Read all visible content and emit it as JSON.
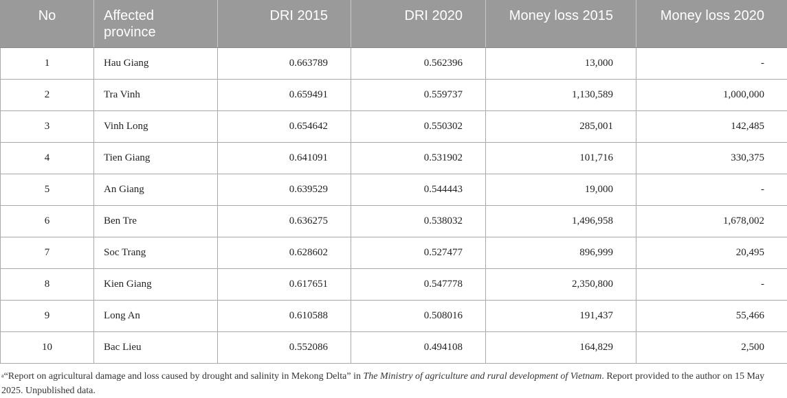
{
  "table": {
    "headers": {
      "no": "No",
      "province": "Affected province",
      "dri_2015": "DRI 2015",
      "dri_2020": "DRI 2020",
      "money_2015": "Money loss 2015",
      "money_2020": "Money loss 2020"
    },
    "rows": [
      {
        "no": "1",
        "province": "Hau Giang",
        "dri_2015": "0.663789",
        "dri_2020": "0.562396",
        "money_2015": "13,000",
        "money_2020": "-"
      },
      {
        "no": "2",
        "province": "Tra Vinh",
        "dri_2015": "0.659491",
        "dri_2020": "0.559737",
        "money_2015": "1,130,589",
        "money_2020": "1,000,000"
      },
      {
        "no": "3",
        "province": "Vinh Long",
        "dri_2015": "0.654642",
        "dri_2020": "0.550302",
        "money_2015": "285,001",
        "money_2020": "142,485"
      },
      {
        "no": "4",
        "province": "Tien Giang",
        "dri_2015": "0.641091",
        "dri_2020": "0.531902",
        "money_2015": "101,716",
        "money_2020": "330,375"
      },
      {
        "no": "5",
        "province": "An Giang",
        "dri_2015": "0.639529",
        "dri_2020": "0.544443",
        "money_2015": "19,000",
        "money_2020": "-"
      },
      {
        "no": "6",
        "province": "Ben Tre",
        "dri_2015": "0.636275",
        "dri_2020": "0.538032",
        "money_2015": "1,496,958",
        "money_2020": "1,678,002"
      },
      {
        "no": "7",
        "province": "Soc Trang",
        "dri_2015": "0.628602",
        "dri_2020": "0.527477",
        "money_2015": "896,999",
        "money_2020": "20,495"
      },
      {
        "no": "8",
        "province": "Kien Giang",
        "dri_2015": "0.617651",
        "dri_2020": "0.547778",
        "money_2015": "2,350,800",
        "money_2020": "-"
      },
      {
        "no": "9",
        "province": "Long An",
        "dri_2015": "0.610588",
        "dri_2020": "0.508016",
        "money_2015": "191,437",
        "money_2020": "55,466"
      },
      {
        "no": "10",
        "province": "Bac Lieu",
        "dri_2015": "0.552086",
        "dri_2020": "0.494108",
        "money_2015": "164,829",
        "money_2020": "2,500"
      }
    ]
  },
  "footnote": {
    "marker": "a",
    "quote": "“Report on agricultural damage and loss caused by drought and salinity in Mekong Delta”",
    "in_text": " in ",
    "source": "The Ministry of agriculture and rural development of Vietnam",
    "rest": ". Report provided to the author on 15 May 2025. Unpublished data."
  }
}
